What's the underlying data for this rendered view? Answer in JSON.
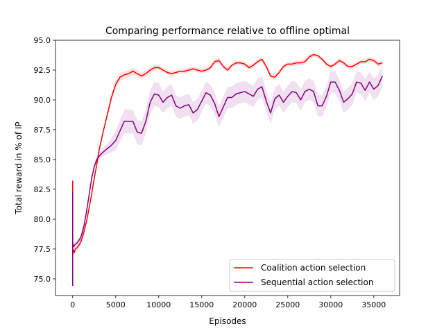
{
  "chart_data": {
    "type": "line",
    "title": "Comparing performance relative to offline optimal",
    "xlabel": "Episodes",
    "ylabel": "Total reward in % of IP",
    "xlim": [
      -2000,
      38000
    ],
    "ylim": [
      73.6,
      95.0
    ],
    "xticks": [
      0,
      5000,
      10000,
      15000,
      20000,
      25000,
      30000,
      35000
    ],
    "xtick_labels": [
      "0",
      "5000",
      "10000",
      "15000",
      "20000",
      "25000",
      "30000",
      "35000"
    ],
    "yticks": [
      75.0,
      77.5,
      80.0,
      82.5,
      85.0,
      87.5,
      90.0,
      92.5,
      95.0
    ],
    "ytick_labels": [
      "75.0",
      "77.5",
      "80.0",
      "82.5",
      "85.0",
      "87.5",
      "90.0",
      "92.5",
      "95.0"
    ],
    "grid": false,
    "legend_position": "lower-right",
    "series": [
      {
        "name": "Coalition action selection",
        "color": "#ff0000",
        "band_color": "#ff0000",
        "x": [
          0,
          0,
          0,
          0,
          100,
          200,
          300,
          500,
          800,
          1000,
          1300,
          1600,
          1900,
          2200,
          2500,
          2800,
          3100,
          3500,
          4000,
          4500,
          5000,
          5500,
          6000,
          6500,
          7000,
          7500,
          8000,
          8500,
          9000,
          9500,
          10000,
          10500,
          11000,
          11500,
          12000,
          12500,
          13000,
          13500,
          14000,
          14500,
          15000,
          15500,
          16000,
          16500,
          17000,
          17500,
          18000,
          18500,
          19000,
          19500,
          20000,
          20500,
          21000,
          21500,
          22000,
          22500,
          23000,
          23500,
          24000,
          24500,
          25000,
          25500,
          26000,
          26500,
          27000,
          27500,
          28000,
          28500,
          29000,
          29500,
          30000,
          30500,
          31000,
          31500,
          32000,
          32500,
          33000,
          33500,
          34000,
          34500,
          35000,
          35500,
          36000
        ],
        "y": [
          82.5,
          83.2,
          77.5,
          77.0,
          77.4,
          77.2,
          77.5,
          77.6,
          77.9,
          78.2,
          78.9,
          79.8,
          80.9,
          82.1,
          83.4,
          84.6,
          85.9,
          87.2,
          88.7,
          90.2,
          91.3,
          91.9,
          92.1,
          92.2,
          92.4,
          92.2,
          92.0,
          92.2,
          92.5,
          92.7,
          92.7,
          92.5,
          92.3,
          92.2,
          92.3,
          92.4,
          92.4,
          92.5,
          92.6,
          92.5,
          92.4,
          92.5,
          92.7,
          93.2,
          93.3,
          92.8,
          92.5,
          92.9,
          93.1,
          93.1,
          93.0,
          92.7,
          92.9,
          93.2,
          93.4,
          92.8,
          92.0,
          91.9,
          92.3,
          92.8,
          93.0,
          93.0,
          93.1,
          93.1,
          93.2,
          93.6,
          93.8,
          93.7,
          93.4,
          93.0,
          92.8,
          93.0,
          93.3,
          93.1,
          92.8,
          92.8,
          93.0,
          93.2,
          93.2,
          93.4,
          93.3,
          93.0,
          93.1
        ],
        "band": [
          0.15,
          0.15,
          0.15,
          0.15,
          0.2,
          0.2,
          0.2,
          0.2,
          0.2,
          0.2,
          0.2,
          0.2,
          0.2,
          0.2,
          0.2,
          0.2,
          0.2,
          0.25,
          0.25,
          0.3,
          0.35,
          0.35,
          0.3,
          0.3,
          0.3,
          0.3,
          0.25,
          0.25,
          0.25,
          0.25,
          0.25,
          0.2,
          0.2,
          0.2,
          0.2,
          0.2,
          0.2,
          0.2,
          0.2,
          0.2,
          0.2,
          0.2,
          0.2,
          0.2,
          0.2,
          0.2,
          0.2,
          0.2,
          0.2,
          0.2,
          0.2,
          0.2,
          0.2,
          0.2,
          0.2,
          0.2,
          0.25,
          0.25,
          0.2,
          0.2,
          0.2,
          0.2,
          0.2,
          0.2,
          0.2,
          0.2,
          0.2,
          0.2,
          0.2,
          0.2,
          0.2,
          0.2,
          0.2,
          0.2,
          0.2,
          0.2,
          0.2,
          0.2,
          0.2,
          0.2,
          0.2,
          0.2,
          0.2
        ]
      },
      {
        "name": "Sequential action selection",
        "color": "#800080",
        "band_color": "#800080",
        "x": [
          0,
          0,
          0,
          0,
          100,
          200,
          300,
          500,
          800,
          1000,
          1300,
          1600,
          1900,
          2200,
          2500,
          2800,
          3100,
          3500,
          4000,
          4500,
          5000,
          5500,
          6000,
          6500,
          7000,
          7500,
          8000,
          8500,
          9000,
          9500,
          10000,
          10500,
          11000,
          11500,
          12000,
          12500,
          13000,
          13500,
          14000,
          14500,
          15000,
          15500,
          16000,
          16500,
          17000,
          17500,
          18000,
          18500,
          19000,
          19500,
          20000,
          20500,
          21000,
          21500,
          22000,
          22500,
          23000,
          23500,
          24000,
          24500,
          25000,
          25500,
          26000,
          26500,
          27000,
          27500,
          28000,
          28500,
          29000,
          29500,
          30000,
          30500,
          31000,
          31500,
          32000,
          32500,
          33000,
          33500,
          34000,
          34500,
          35000,
          35500,
          36000
        ],
        "y": [
          74.4,
          82.3,
          77.5,
          78.0,
          77.7,
          77.8,
          77.9,
          78.0,
          78.3,
          78.6,
          79.4,
          80.6,
          82.0,
          83.4,
          84.4,
          85.0,
          85.3,
          85.6,
          85.9,
          86.2,
          86.6,
          87.4,
          88.2,
          88.2,
          88.2,
          87.3,
          87.2,
          88.2,
          89.8,
          90.5,
          90.4,
          89.8,
          90.2,
          90.4,
          89.5,
          89.3,
          89.5,
          89.6,
          88.9,
          89.2,
          89.9,
          90.6,
          90.4,
          89.7,
          88.6,
          89.4,
          90.2,
          90.2,
          90.5,
          90.6,
          90.7,
          90.5,
          90.3,
          90.9,
          91.1,
          89.9,
          88.9,
          90.1,
          90.4,
          89.8,
          90.3,
          90.7,
          90.6,
          90.0,
          90.7,
          90.9,
          90.7,
          89.5,
          89.5,
          90.3,
          91.5,
          91.5,
          90.8,
          89.8,
          90.1,
          90.5,
          91.5,
          91.4,
          90.8,
          91.5,
          90.9,
          91.2,
          92.0
        ],
        "band": [
          0.2,
          0.2,
          0.2,
          0.2,
          0.25,
          0.25,
          0.25,
          0.25,
          0.25,
          0.3,
          0.3,
          0.3,
          0.3,
          0.3,
          0.3,
          0.3,
          0.3,
          0.35,
          0.4,
          0.6,
          0.8,
          0.9,
          1.0,
          1.0,
          1.0,
          1.0,
          1.0,
          1.0,
          1.0,
          1.0,
          1.0,
          0.9,
          0.9,
          0.9,
          0.9,
          0.9,
          0.9,
          0.9,
          0.9,
          0.9,
          0.9,
          0.9,
          0.9,
          0.9,
          0.9,
          0.9,
          0.9,
          0.9,
          0.9,
          0.9,
          0.9,
          0.9,
          0.9,
          0.9,
          0.9,
          0.9,
          0.9,
          0.9,
          0.9,
          0.9,
          0.9,
          0.9,
          0.9,
          0.9,
          0.9,
          0.9,
          0.9,
          0.9,
          0.9,
          0.9,
          0.9,
          0.9,
          0.9,
          0.9,
          0.9,
          0.9,
          0.9,
          0.9,
          0.9,
          0.9,
          0.9,
          0.9,
          0.9
        ]
      }
    ]
  }
}
